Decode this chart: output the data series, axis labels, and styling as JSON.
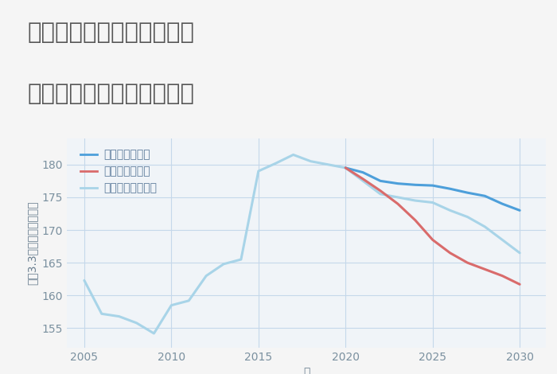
{
  "title_line1": "兵庫県西宮市名塩東久保の",
  "title_line2": "中古マンションの価格推移",
  "xlabel": "年",
  "ylabel": "坪（3.3㎡）単価（万円）",
  "background_color": "#f5f5f5",
  "plot_background": "#f0f4f8",
  "ylim": [
    152,
    184
  ],
  "yticks": [
    155,
    160,
    165,
    170,
    175,
    180
  ],
  "xlim": [
    2004.0,
    2031.5
  ],
  "xticks": [
    2005,
    2010,
    2015,
    2020,
    2025,
    2030
  ],
  "good_scenario": {
    "label": "グッドシナリオ",
    "color": "#4d9fda",
    "linewidth": 2.2,
    "years": [
      2020,
      2021,
      2022,
      2023,
      2024,
      2025,
      2026,
      2027,
      2028,
      2029,
      2030
    ],
    "values": [
      179.5,
      178.8,
      177.5,
      177.1,
      176.9,
      176.8,
      176.3,
      175.7,
      175.2,
      174.0,
      173.0
    ]
  },
  "bad_scenario": {
    "label": "バッドシナリオ",
    "color": "#d96b6b",
    "linewidth": 2.2,
    "years": [
      2020,
      2021,
      2022,
      2023,
      2024,
      2025,
      2026,
      2027,
      2028,
      2029,
      2030
    ],
    "values": [
      179.5,
      177.8,
      176.0,
      174.0,
      171.5,
      168.5,
      166.5,
      165.0,
      164.0,
      163.0,
      161.7
    ]
  },
  "normal_scenario": {
    "label": "ノーマルシナリオ",
    "color": "#a8d4e8",
    "linewidth": 2.2,
    "years": [
      2005,
      2006,
      2007,
      2008,
      2009,
      2010,
      2011,
      2012,
      2013,
      2014,
      2015,
      2016,
      2017,
      2018,
      2019,
      2020,
      2021,
      2022,
      2023,
      2024,
      2025,
      2026,
      2027,
      2028,
      2029,
      2030
    ],
    "values": [
      162.3,
      157.2,
      156.8,
      155.8,
      154.2,
      158.5,
      159.2,
      163.0,
      164.8,
      165.5,
      179.0,
      180.2,
      181.5,
      180.5,
      180.0,
      179.5,
      177.5,
      175.5,
      175.0,
      174.5,
      174.2,
      173.0,
      172.0,
      170.5,
      168.5,
      166.5
    ]
  },
  "grid_color": "#c5d8ea",
  "title_color": "#555555",
  "axis_label_color": "#6a7f90",
  "tick_color": "#7a909f",
  "title_fontsize": 21,
  "axis_label_fontsize": 10,
  "tick_fontsize": 10,
  "legend_label_color": "#5a7a9a"
}
